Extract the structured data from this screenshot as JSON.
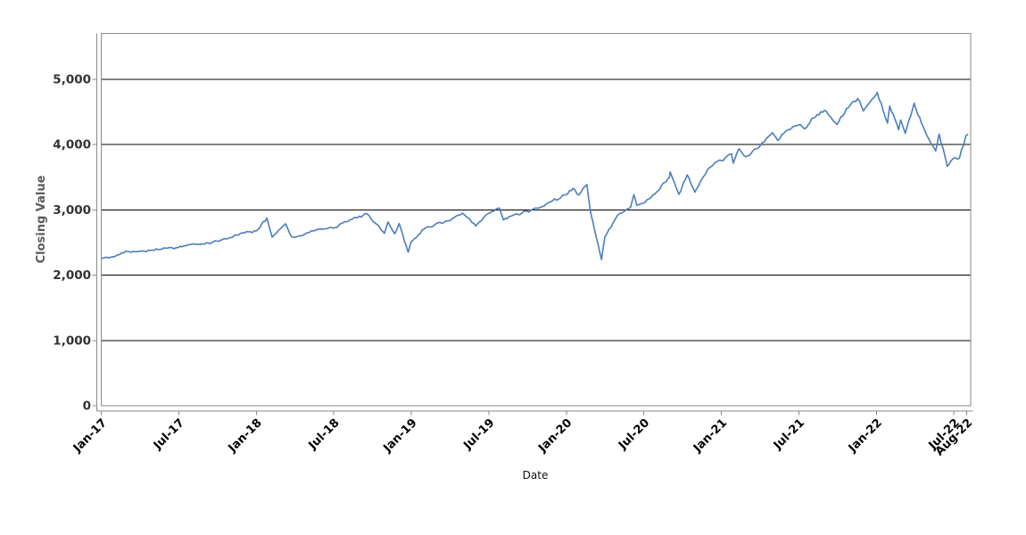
{
  "chart_data": {
    "type": "line",
    "title": "",
    "xlabel": "Date",
    "ylabel": "Closing Value",
    "legend": "none",
    "grid": "horizontal-black-lines",
    "plot_bg": "#ffffff",
    "line_color": "#4a7ebb",
    "axis_color": "#8a8a8a",
    "gridline_color": "#000000",
    "ytick_label_color": "#333333",
    "xtick_label_color": "#000000",
    "ylabel_color": "#5b5b5b",
    "xlabel_color": "#111111",
    "ylim": [
      0,
      5700
    ],
    "x_range_months": [
      0,
      67.3
    ],
    "y_ticks": [
      {
        "label": "0",
        "value": 0
      },
      {
        "label": "1,000",
        "value": 1000
      },
      {
        "label": "2,000",
        "value": 2000
      },
      {
        "label": "3,000",
        "value": 3000
      },
      {
        "label": "4,000",
        "value": 4000
      },
      {
        "label": "5,000",
        "value": 5000
      }
    ],
    "x_ticks": [
      {
        "label": "Jan-17",
        "month": 0
      },
      {
        "label": "Jul-17",
        "month": 6
      },
      {
        "label": "Jan-18",
        "month": 12
      },
      {
        "label": "Jul-18",
        "month": 18
      },
      {
        "label": "Jan-19",
        "month": 24
      },
      {
        "label": "Jul-19",
        "month": 30
      },
      {
        "label": "Jan-20",
        "month": 36
      },
      {
        "label": "Jul-20",
        "month": 42
      },
      {
        "label": "Jan-21",
        "month": 48
      },
      {
        "label": "Jul-21",
        "month": 54
      },
      {
        "label": "Jan-22",
        "month": 60
      },
      {
        "label": "Jul-22",
        "month": 66
      },
      {
        "label": "Aug-22",
        "month": 67
      }
    ],
    "series": [
      {
        "name": "Closing Value",
        "points": [
          [
            "2017-01-03",
            2258
          ],
          [
            "2017-01-31",
            2279
          ],
          [
            "2017-02-28",
            2364
          ],
          [
            "2017-03-31",
            2363
          ],
          [
            "2017-04-30",
            2384
          ],
          [
            "2017-05-31",
            2412
          ],
          [
            "2017-06-30",
            2423
          ],
          [
            "2017-07-31",
            2470
          ],
          [
            "2017-08-31",
            2472
          ],
          [
            "2017-09-30",
            2519
          ],
          [
            "2017-10-31",
            2575
          ],
          [
            "2017-11-30",
            2648
          ],
          [
            "2017-12-31",
            2674
          ],
          [
            "2018-01-26",
            2873
          ],
          [
            "2018-02-08",
            2581
          ],
          [
            "2018-02-28",
            2714
          ],
          [
            "2018-03-09",
            2787
          ],
          [
            "2018-03-23",
            2588
          ],
          [
            "2018-04-02",
            2582
          ],
          [
            "2018-04-30",
            2648
          ],
          [
            "2018-05-31",
            2705
          ],
          [
            "2018-06-30",
            2718
          ],
          [
            "2018-07-31",
            2816
          ],
          [
            "2018-08-31",
            2902
          ],
          [
            "2018-09-20",
            2931
          ],
          [
            "2018-10-29",
            2641
          ],
          [
            "2018-11-07",
            2814
          ],
          [
            "2018-11-23",
            2633
          ],
          [
            "2018-12-03",
            2790
          ],
          [
            "2018-12-24",
            2351
          ],
          [
            "2018-12-31",
            2507
          ],
          [
            "2019-01-31",
            2704
          ],
          [
            "2019-02-28",
            2784
          ],
          [
            "2019-03-31",
            2834
          ],
          [
            "2019-04-30",
            2946
          ],
          [
            "2019-05-31",
            2752
          ],
          [
            "2019-06-30",
            2942
          ],
          [
            "2019-07-26",
            3026
          ],
          [
            "2019-08-05",
            2845
          ],
          [
            "2019-08-31",
            2926
          ],
          [
            "2019-09-30",
            2977
          ],
          [
            "2019-10-31",
            3038
          ],
          [
            "2019-11-30",
            3141
          ],
          [
            "2019-12-31",
            3231
          ],
          [
            "2020-01-17",
            3330
          ],
          [
            "2020-01-31",
            3226
          ],
          [
            "2020-02-19",
            3386
          ],
          [
            "2020-02-28",
            2954
          ],
          [
            "2020-03-23",
            2237
          ],
          [
            "2020-03-31",
            2585
          ],
          [
            "2020-04-30",
            2912
          ],
          [
            "2020-05-31",
            3044
          ],
          [
            "2020-06-08",
            3232
          ],
          [
            "2020-06-15",
            3066
          ],
          [
            "2020-06-30",
            3100
          ],
          [
            "2020-07-31",
            3271
          ],
          [
            "2020-08-31",
            3500
          ],
          [
            "2020-09-02",
            3581
          ],
          [
            "2020-09-23",
            3237
          ],
          [
            "2020-10-12",
            3534
          ],
          [
            "2020-10-30",
            3270
          ],
          [
            "2020-11-30",
            3622
          ],
          [
            "2020-12-31",
            3756
          ],
          [
            "2021-01-25",
            3855
          ],
          [
            "2021-01-29",
            3714
          ],
          [
            "2021-02-12",
            3935
          ],
          [
            "2021-02-28",
            3811
          ],
          [
            "2021-03-31",
            3973
          ],
          [
            "2021-04-30",
            4181
          ],
          [
            "2021-05-12",
            4063
          ],
          [
            "2021-05-31",
            4204
          ],
          [
            "2021-06-30",
            4298
          ],
          [
            "2021-07-19",
            4258
          ],
          [
            "2021-07-31",
            4395
          ],
          [
            "2021-08-31",
            4523
          ],
          [
            "2021-09-30",
            4308
          ],
          [
            "2021-10-31",
            4605
          ],
          [
            "2021-11-18",
            4705
          ],
          [
            "2021-12-01",
            4513
          ],
          [
            "2021-12-31",
            4766
          ],
          [
            "2022-01-03",
            4797
          ],
          [
            "2022-01-27",
            4326
          ],
          [
            "2022-02-02",
            4589
          ],
          [
            "2022-02-23",
            4225
          ],
          [
            "2022-02-28",
            4374
          ],
          [
            "2022-03-08",
            4171
          ],
          [
            "2022-03-29",
            4631
          ],
          [
            "2022-04-29",
            4132
          ],
          [
            "2022-05-19",
            3901
          ],
          [
            "2022-05-27",
            4158
          ],
          [
            "2022-06-16",
            3667
          ],
          [
            "2022-06-30",
            3785
          ],
          [
            "2022-07-14",
            3790
          ],
          [
            "2022-07-29",
            4130
          ],
          [
            "2022-08-03",
            4155
          ]
        ]
      }
    ]
  }
}
